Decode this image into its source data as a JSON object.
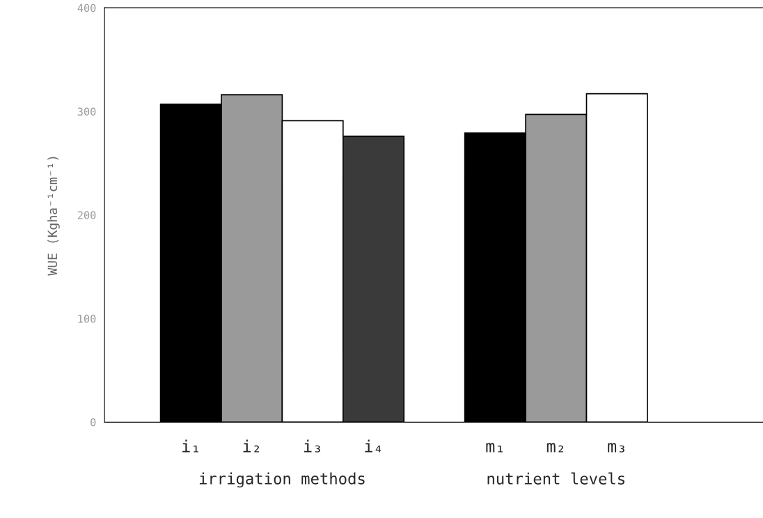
{
  "chart_data": {
    "type": "bar",
    "ylabel": "WUE (Kgha⁻¹cm⁻¹)",
    "categories": [
      "i₁",
      "i₂",
      "i₃",
      "i₄",
      null,
      "m₁",
      "m₂",
      "m₃"
    ],
    "values": [
      307,
      316,
      291,
      276,
      null,
      279,
      297,
      317
    ],
    "colors": [
      "#000000",
      "#9a9a9a",
      "#ffffff",
      "#3a3a3a",
      "#ffffff",
      "#000000",
      "#9a9a9a",
      "#ffffff"
    ],
    "ylim": [
      0,
      400
    ],
    "yticks": [
      0,
      100,
      200,
      300,
      400
    ],
    "grid": false,
    "annotations": [
      "irrigation methods",
      "nutrient levels"
    ]
  }
}
